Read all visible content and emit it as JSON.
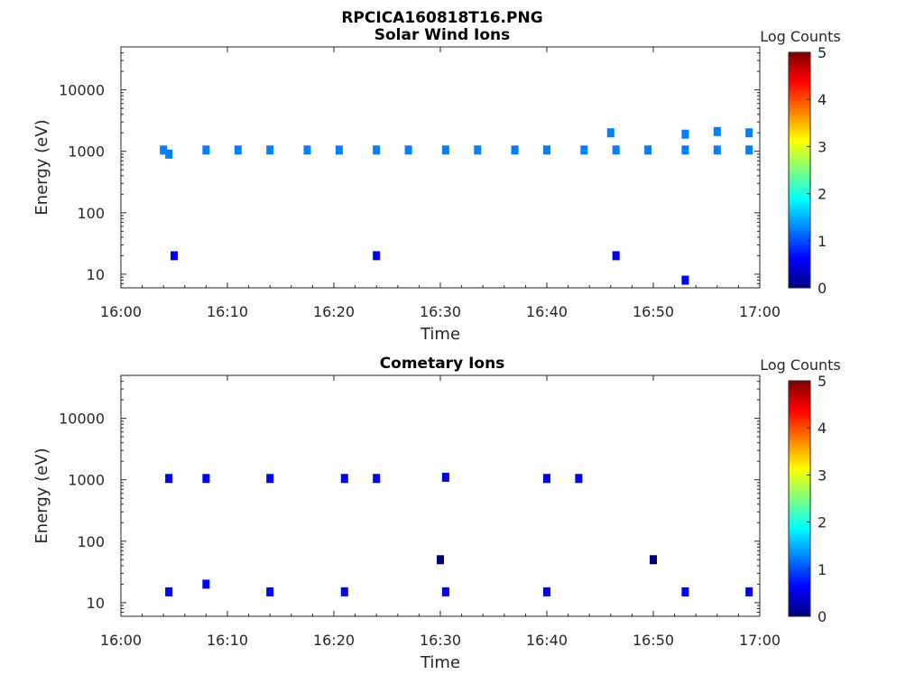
{
  "figure_title": "RPCICA160818T16.PNG",
  "colorbar": {
    "label": "Log Counts",
    "range": [
      0,
      5
    ],
    "ticks": [
      "0",
      "1",
      "2",
      "3",
      "4",
      "5"
    ],
    "colormap": "jet",
    "colors": [
      "#00007f",
      "#0000ff",
      "#007fff",
      "#00ffff",
      "#7fff7f",
      "#ffff00",
      "#ff7f00",
      "#ff0000",
      "#7f0000"
    ]
  },
  "chart_data": [
    {
      "type": "heatmap",
      "title": "Solar Wind Ions",
      "xlabel": "Time",
      "ylabel": "Energy (eV)",
      "xlim": [
        "16:00",
        "17:00"
      ],
      "x_ticks": [
        "16:00",
        "16:10",
        "16:20",
        "16:30",
        "16:40",
        "16:50",
        "17:00"
      ],
      "ylim": [
        6,
        50000
      ],
      "y_scale": "log",
      "y_ticks": [
        "10",
        "100",
        "1000",
        "10000"
      ],
      "cells": [
        {
          "t": "16:04",
          "e": 1050,
          "v": 1.2
        },
        {
          "t": "16:04.5",
          "e": 900,
          "v": 1.0
        },
        {
          "t": "16:08",
          "e": 1050,
          "v": 1.2
        },
        {
          "t": "16:11",
          "e": 1050,
          "v": 1.2
        },
        {
          "t": "16:14",
          "e": 1050,
          "v": 1.2
        },
        {
          "t": "16:17.5",
          "e": 1050,
          "v": 1.2
        },
        {
          "t": "16:20.5",
          "e": 1050,
          "v": 1.1
        },
        {
          "t": "16:24",
          "e": 1050,
          "v": 1.2
        },
        {
          "t": "16:27",
          "e": 1050,
          "v": 1.2
        },
        {
          "t": "16:30.5",
          "e": 1050,
          "v": 1.1
        },
        {
          "t": "16:33.5",
          "e": 1050,
          "v": 1.2
        },
        {
          "t": "16:37",
          "e": 1050,
          "v": 1.2
        },
        {
          "t": "16:40",
          "e": 1050,
          "v": 1.2
        },
        {
          "t": "16:43.5",
          "e": 1050,
          "v": 1.2
        },
        {
          "t": "16:46.5",
          "e": 1050,
          "v": 1.2
        },
        {
          "t": "16:49.5",
          "e": 1050,
          "v": 1.2
        },
        {
          "t": "16:53",
          "e": 1050,
          "v": 1.2
        },
        {
          "t": "16:56",
          "e": 1050,
          "v": 1.2
        },
        {
          "t": "16:59",
          "e": 1050,
          "v": 1.2
        },
        {
          "t": "16:46",
          "e": 2000,
          "v": 1.0
        },
        {
          "t": "16:53",
          "e": 1900,
          "v": 1.0
        },
        {
          "t": "16:56",
          "e": 2100,
          "v": 1.0
        },
        {
          "t": "16:59",
          "e": 2000,
          "v": 1.0
        },
        {
          "t": "16:05",
          "e": 20,
          "v": 0.5
        },
        {
          "t": "16:24",
          "e": 20,
          "v": 0.5
        },
        {
          "t": "16:46.5",
          "e": 20,
          "v": 0.5
        },
        {
          "t": "16:53",
          "e": 8,
          "v": 0.5
        }
      ]
    },
    {
      "type": "heatmap",
      "title": "Cometary Ions",
      "xlabel": "Time",
      "ylabel": "Energy (eV)",
      "xlim": [
        "16:00",
        "17:00"
      ],
      "x_ticks": [
        "16:00",
        "16:10",
        "16:20",
        "16:30",
        "16:40",
        "16:50",
        "17:00"
      ],
      "ylim": [
        6,
        50000
      ],
      "y_scale": "log",
      "y_ticks": [
        "10",
        "100",
        "1000",
        "10000"
      ],
      "cells": [
        {
          "t": "16:04.5",
          "e": 1050,
          "v": 0.6
        },
        {
          "t": "16:08",
          "e": 1050,
          "v": 0.6
        },
        {
          "t": "16:14",
          "e": 1050,
          "v": 0.6
        },
        {
          "t": "16:21",
          "e": 1050,
          "v": 0.6
        },
        {
          "t": "16:24",
          "e": 1050,
          "v": 0.6
        },
        {
          "t": "16:30.5",
          "e": 1100,
          "v": 0.6
        },
        {
          "t": "16:40",
          "e": 1050,
          "v": 0.6
        },
        {
          "t": "16:43",
          "e": 1050,
          "v": 0.6
        },
        {
          "t": "16:04.5",
          "e": 15,
          "v": 0.5
        },
        {
          "t": "16:08",
          "e": 20,
          "v": 0.9
        },
        {
          "t": "16:14",
          "e": 15,
          "v": 0.5
        },
        {
          "t": "16:21",
          "e": 15,
          "v": 0.5
        },
        {
          "t": "16:30.5",
          "e": 15,
          "v": 0.5
        },
        {
          "t": "16:40",
          "e": 15,
          "v": 0.5
        },
        {
          "t": "16:53",
          "e": 15,
          "v": 0.5
        },
        {
          "t": "16:59",
          "e": 15,
          "v": 0.5
        },
        {
          "t": "16:30",
          "e": 50,
          "v": 0.3
        },
        {
          "t": "16:50",
          "e": 50,
          "v": 0.3
        }
      ]
    }
  ]
}
